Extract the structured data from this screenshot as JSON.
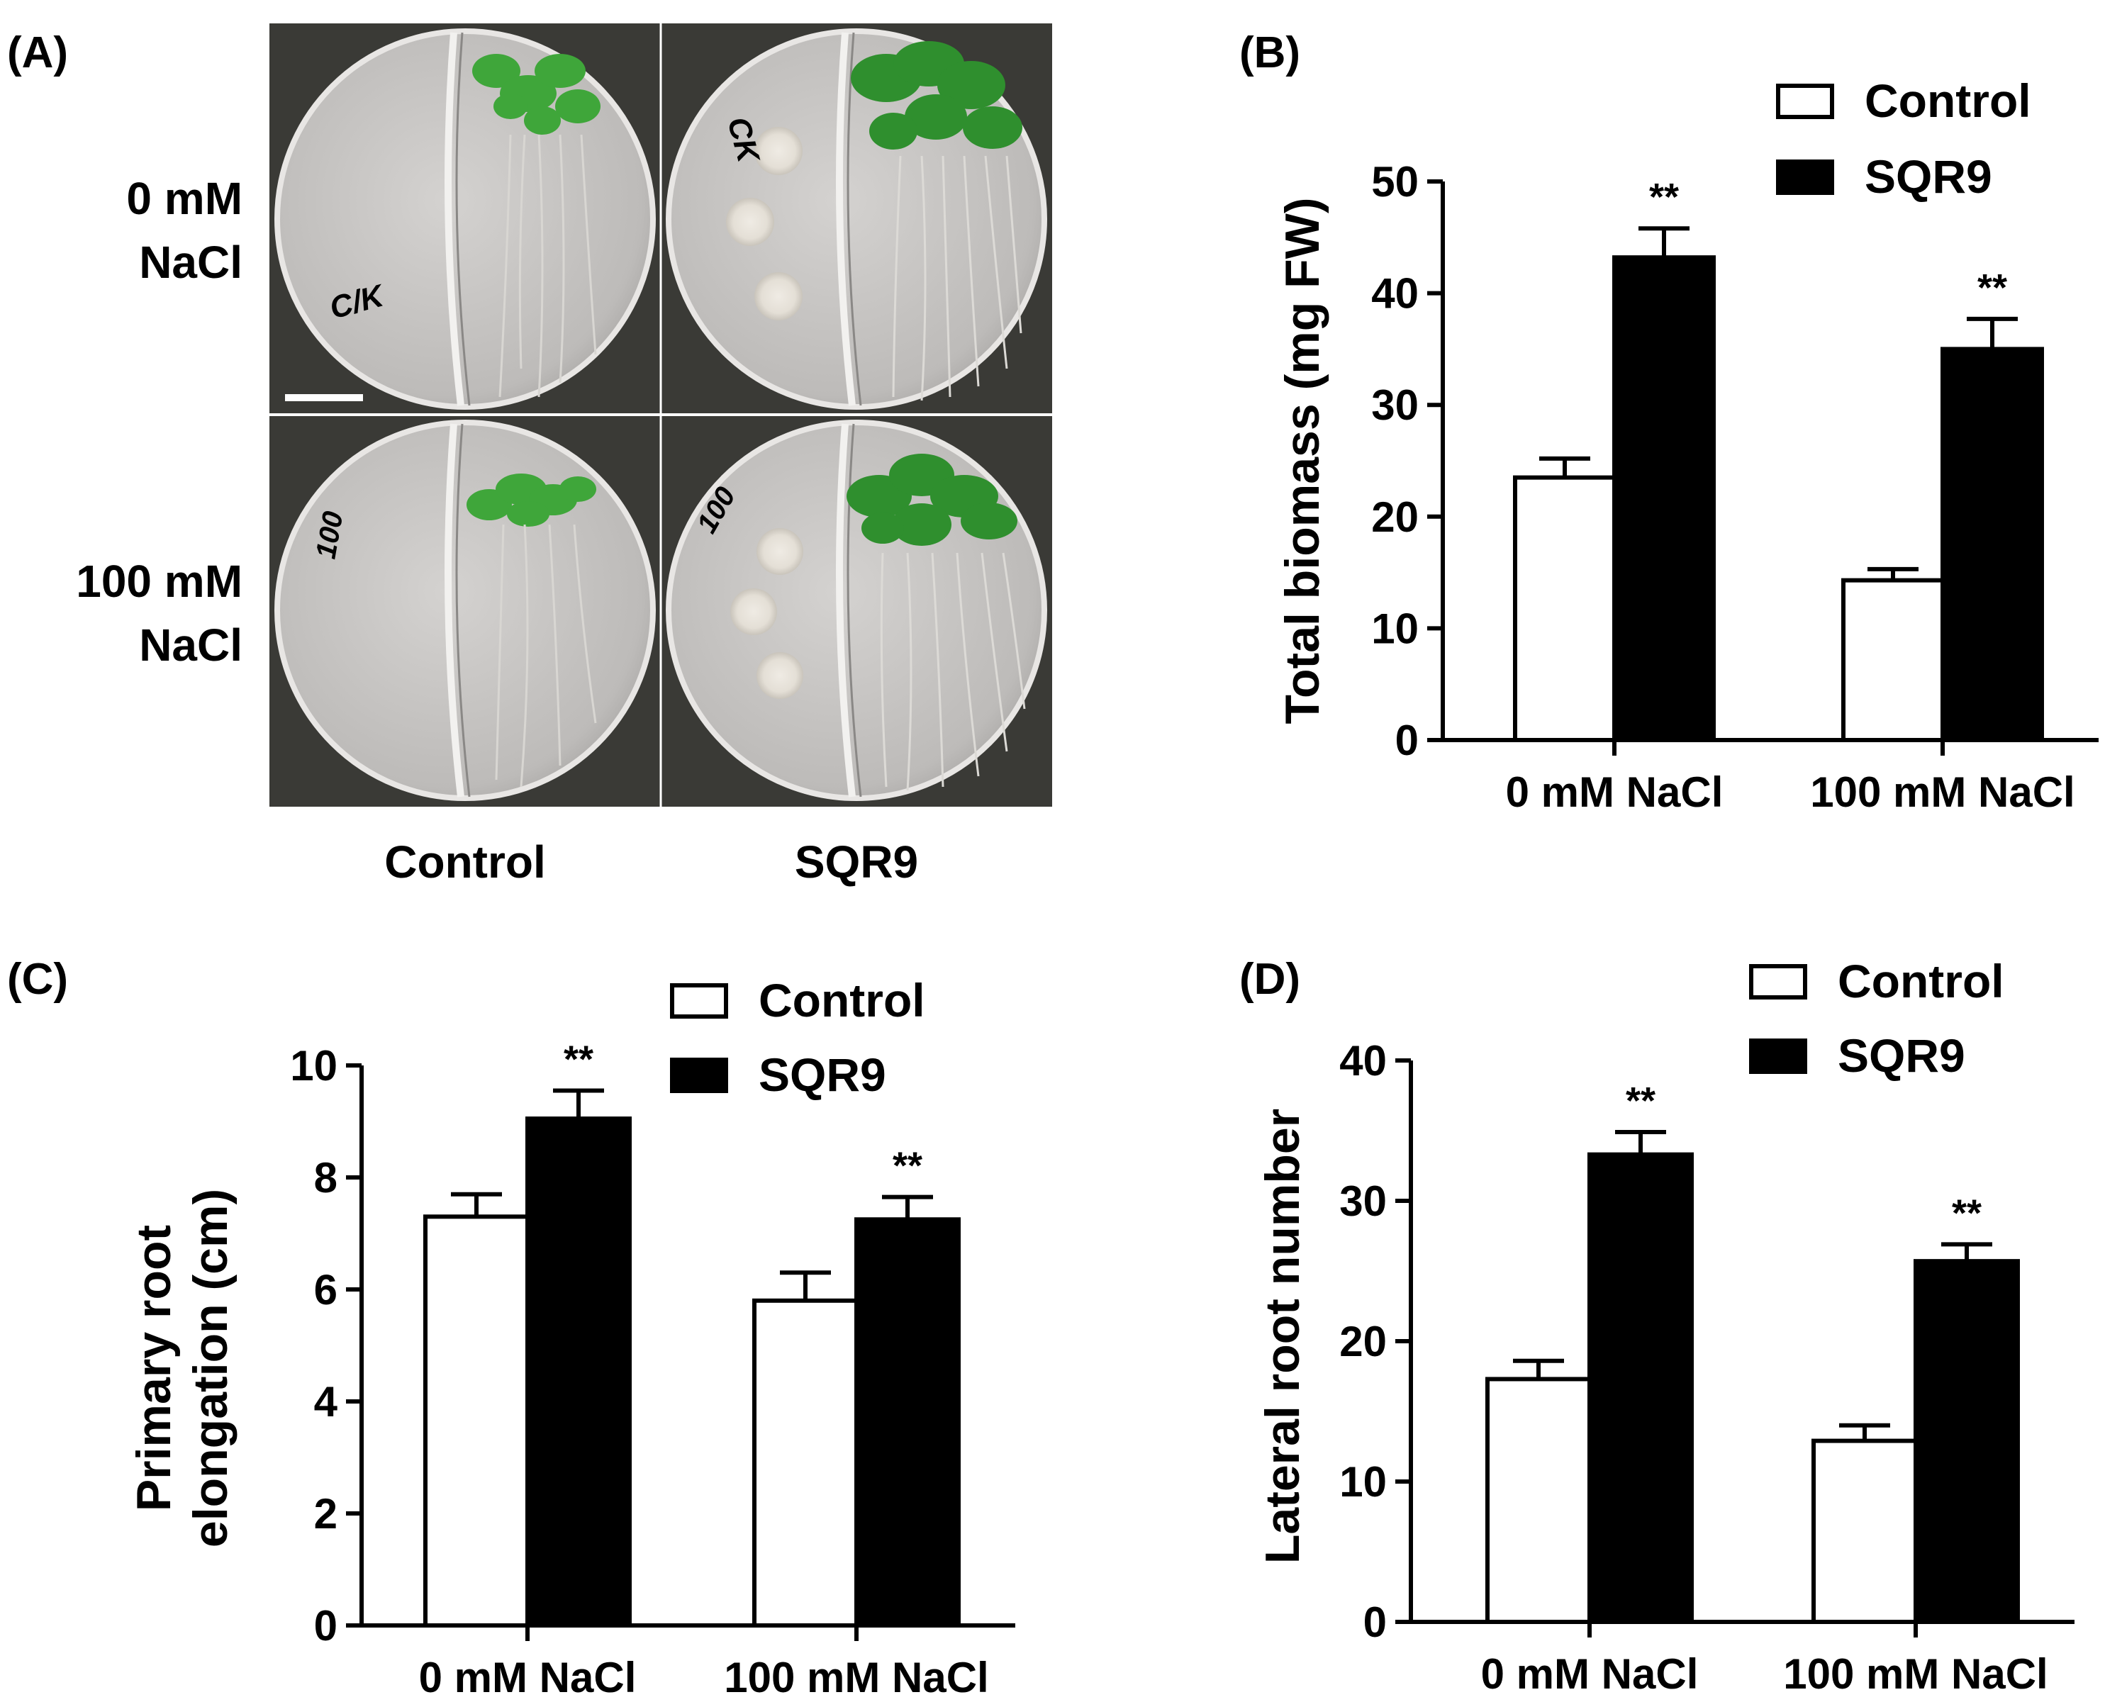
{
  "figure": {
    "panel_a": {
      "label": "(A)",
      "row_labels": [
        [
          "0 mM",
          "NaCl"
        ],
        [
          "100 mM",
          "NaCl"
        ]
      ],
      "column_labels": [
        "Control",
        "SQR9"
      ],
      "plate_markings": [
        "C/K",
        "CK",
        "100",
        "100"
      ],
      "colors": {
        "background": "#3a3a36",
        "agar": "#c4c2c0",
        "leaf": "#3fa63a",
        "colony": "#e8e4dc"
      }
    }
  },
  "chart_data": [
    {
      "panel": "(B)",
      "type": "bar",
      "categories": [
        "0 mM NaCl",
        "100 mM NaCl"
      ],
      "series": [
        {
          "name": "Control",
          "values": [
            23.5,
            14.3
          ],
          "errors": [
            1.7,
            1.0
          ],
          "color": "#ffffff"
        },
        {
          "name": "SQR9",
          "values": [
            43.2,
            35.0
          ],
          "errors": [
            2.6,
            2.7
          ],
          "color": "#000000"
        }
      ],
      "annotations": [
        "**",
        "**"
      ],
      "title": "",
      "xlabel": "",
      "ylabel": "Total biomass (mg FW)",
      "ylim": [
        0,
        50
      ],
      "yticks": [
        0,
        10,
        20,
        30,
        40,
        50
      ],
      "legend": "top-right"
    },
    {
      "panel": "(C)",
      "type": "bar",
      "categories": [
        "0 mM NaCl",
        "100 mM NaCl"
      ],
      "series": [
        {
          "name": "Control",
          "values": [
            7.3,
            5.8
          ],
          "errors": [
            0.4,
            0.5
          ],
          "color": "#ffffff"
        },
        {
          "name": "SQR9",
          "values": [
            9.05,
            7.25
          ],
          "errors": [
            0.5,
            0.4
          ],
          "color": "#000000"
        }
      ],
      "annotations": [
        "**",
        "**"
      ],
      "title": "",
      "xlabel": "",
      "ylabel": [
        "Primary root",
        "elongation (cm)"
      ],
      "ylim": [
        0,
        10
      ],
      "yticks": [
        0,
        2,
        4,
        6,
        8,
        10
      ],
      "legend": "top-right"
    },
    {
      "panel": "(D)",
      "type": "bar",
      "categories": [
        "0 mM NaCl",
        "100 mM NaCl"
      ],
      "series": [
        {
          "name": "Control",
          "values": [
            17.3,
            12.9
          ],
          "errors": [
            1.3,
            1.1
          ],
          "color": "#ffffff"
        },
        {
          "name": "SQR9",
          "values": [
            33.3,
            25.7
          ],
          "errors": [
            1.6,
            1.2
          ],
          "color": "#000000"
        }
      ],
      "annotations": [
        "**",
        "**"
      ],
      "title": "",
      "xlabel": "",
      "ylabel": "Lateral root number",
      "ylim": [
        0,
        40
      ],
      "yticks": [
        0,
        10,
        20,
        30,
        40
      ],
      "legend": "top-right"
    }
  ]
}
